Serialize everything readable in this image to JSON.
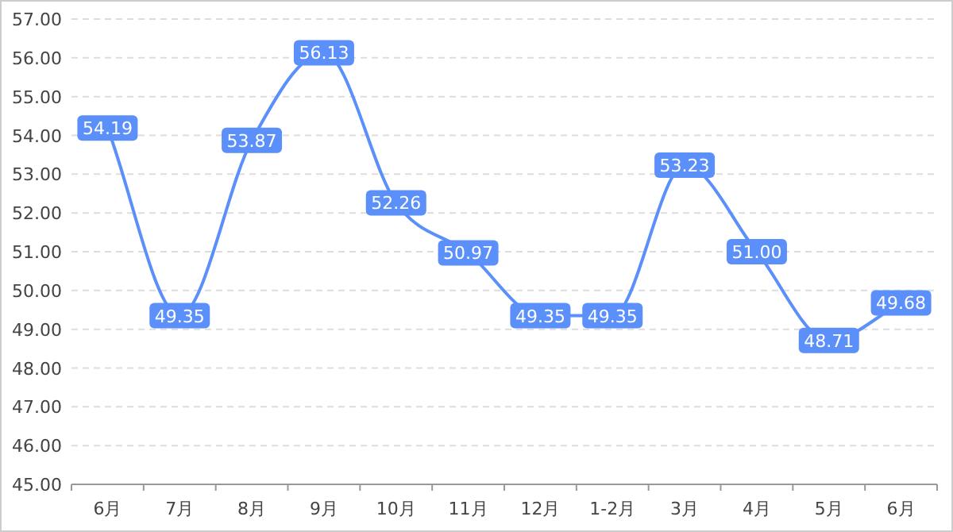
{
  "chart_data": {
    "type": "line",
    "categories": [
      "6月",
      "7月",
      "8月",
      "9月",
      "10月",
      "11月",
      "12月",
      "1-2月",
      "3月",
      "4月",
      "5月",
      "6月"
    ],
    "series": [
      {
        "color": "#5b8ff9",
        "values": [
          54.19,
          49.35,
          53.87,
          56.13,
          52.26,
          50.97,
          49.35,
          49.35,
          53.23,
          51.0,
          48.71,
          49.68
        ],
        "value_labels": [
          "54.19",
          "49.35",
          "53.87",
          "56.13",
          "52.26",
          "50.97",
          "49.35",
          "49.35",
          "53.23",
          "51.00",
          "48.71",
          "49.68"
        ]
      }
    ],
    "ylim": [
      45,
      57
    ],
    "yticks": [
      {
        "value": 45,
        "label": "45.00"
      },
      {
        "value": 46,
        "label": "46.00"
      },
      {
        "value": 47,
        "label": "47.00"
      },
      {
        "value": 48,
        "label": "48.00"
      },
      {
        "value": 49,
        "label": "49.00"
      },
      {
        "value": 50,
        "label": "50.00"
      },
      {
        "value": 51,
        "label": "51.00"
      },
      {
        "value": 52,
        "label": "52.00"
      },
      {
        "value": 53,
        "label": "53.00"
      },
      {
        "value": 54,
        "label": "54.00"
      },
      {
        "value": 55,
        "label": "55.00"
      },
      {
        "value": 56,
        "label": "56.00"
      },
      {
        "value": 57,
        "label": "57.00"
      }
    ],
    "grid": "y",
    "marker": "square",
    "line_style": "solid"
  }
}
